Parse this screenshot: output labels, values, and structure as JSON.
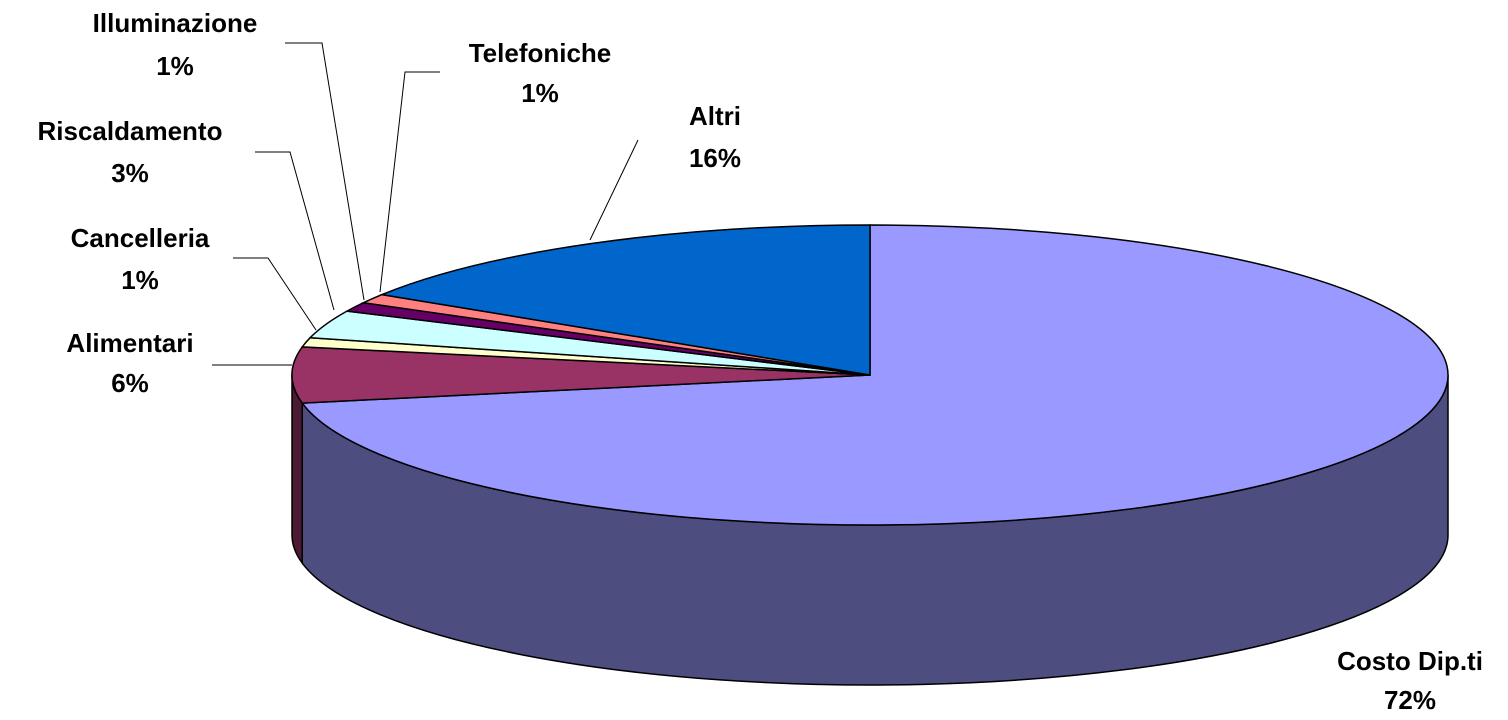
{
  "chart_data": {
    "type": "pie",
    "categories": [
      "Costo Dip.ti",
      "Alimentari",
      "Cancelleria",
      "Riscaldamento",
      "Illuminazione",
      "Telefoniche",
      "Altri"
    ],
    "values": [
      72,
      6,
      1,
      3,
      1,
      1,
      16
    ],
    "value_labels": [
      "72%",
      "6%",
      "1%",
      "3%",
      "1%",
      "1%",
      "16%"
    ],
    "colors": [
      "#9999ff",
      "#993366",
      "#ffffcc",
      "#ccffff",
      "#660066",
      "#ff8080",
      "#0066cc"
    ]
  }
}
